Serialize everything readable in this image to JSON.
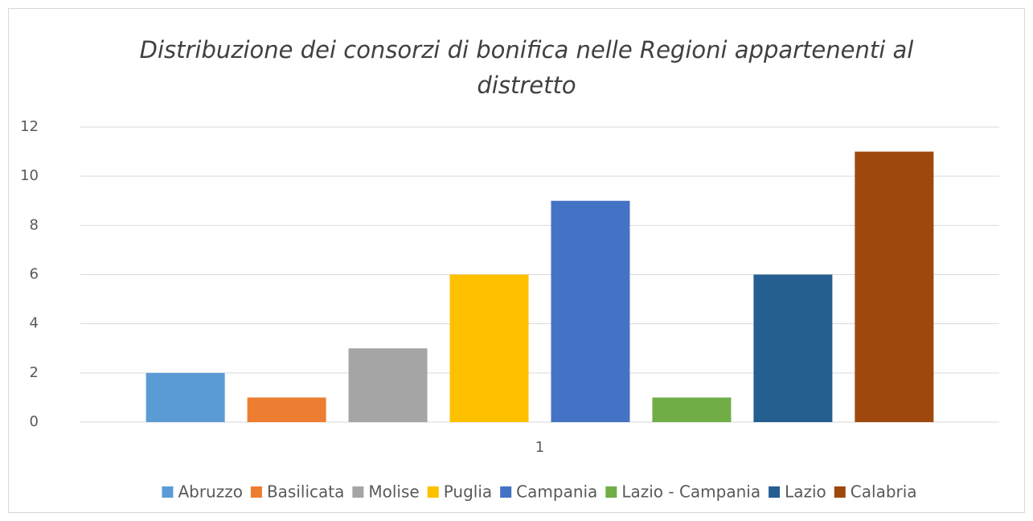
{
  "chart_data": {
    "type": "bar",
    "title": "Distribuzione dei consorzi di bonifica nelle Regioni appartenenti al distretto",
    "categories": [
      "1"
    ],
    "series": [
      {
        "name": "Abruzzo",
        "color": "#5b9bd5",
        "values": [
          2
        ]
      },
      {
        "name": "Basilicata",
        "color": "#ed7d31",
        "values": [
          1
        ]
      },
      {
        "name": "Molise",
        "color": "#a5a5a5",
        "values": [
          3
        ]
      },
      {
        "name": "Puglia",
        "color": "#ffc000",
        "values": [
          6
        ]
      },
      {
        "name": "Campania",
        "color": "#4472c4",
        "values": [
          9
        ]
      },
      {
        "name": "Lazio - Campania",
        "color": "#70ad47",
        "values": [
          1
        ]
      },
      {
        "name": "Lazio",
        "color": "#255e91",
        "values": [
          6
        ]
      },
      {
        "name": "Calabria",
        "color": "#9e480e",
        "values": [
          11
        ]
      }
    ],
    "ylim": [
      0,
      12
    ],
    "yticks": [
      0,
      2,
      4,
      6,
      8,
      10,
      12
    ],
    "grid": true,
    "legend": "bottom"
  }
}
